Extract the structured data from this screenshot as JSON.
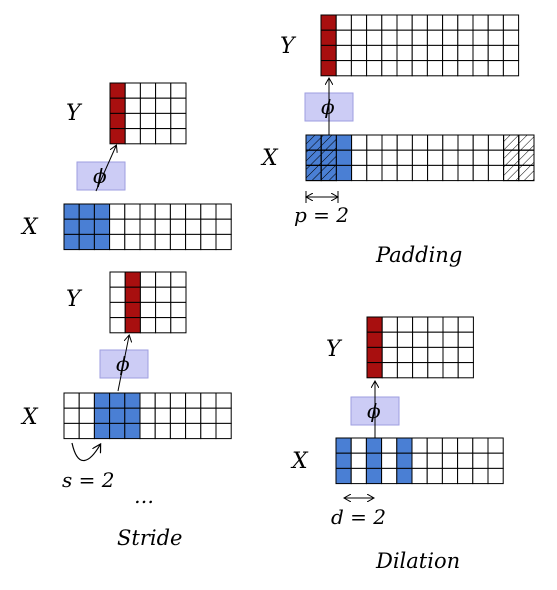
{
  "colors": {
    "input_highlight": "#4a7fd4",
    "output_highlight": "#a80f0f",
    "phi_box": "#ccccf5",
    "phi_box_border": "#9e9ee0",
    "grid": "#000000"
  },
  "stride_example_1": {
    "x_label": "X",
    "y_label": "Y",
    "phi": "ϕ"
  },
  "stride_example_2": {
    "x_label": "X",
    "y_label": "Y",
    "phi": "ϕ",
    "stride_annotation": "s = 2",
    "ellipsis": "…"
  },
  "stride_caption": "Stride",
  "padding": {
    "x_label": "X",
    "y_label": "Y",
    "phi": "ϕ",
    "annotation": "p = 2",
    "caption": "Padding"
  },
  "dilation": {
    "x_label": "X",
    "y_label": "Y",
    "phi": "ϕ",
    "annotation": "d = 2",
    "caption": "Dilation"
  }
}
